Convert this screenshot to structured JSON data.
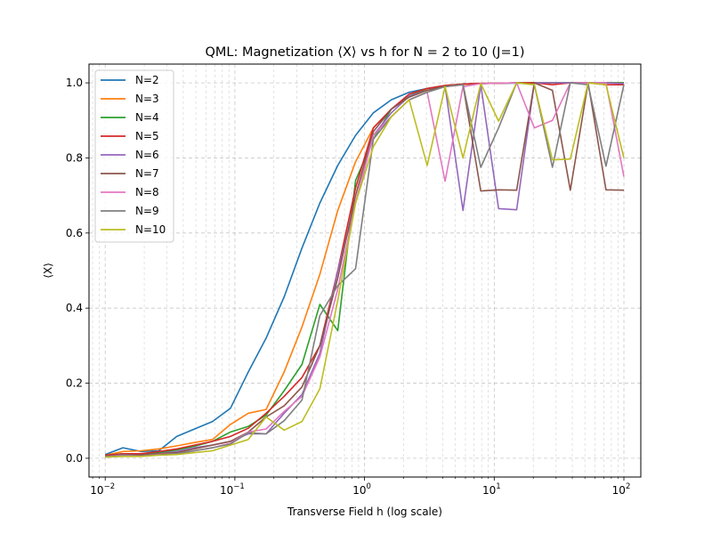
{
  "chart_data": {
    "type": "line",
    "title": "QML: Magnetization ⟨X⟩ vs h for N = 2 to 10 (J=1)",
    "xlabel": "Transverse Field h (log scale)",
    "ylabel": "⟨X⟩",
    "xscale": "log",
    "xlim": [
      0.0075,
      135
    ],
    "ylim": [
      -0.05,
      1.05
    ],
    "xticks": [
      0.01,
      0.1,
      1,
      10,
      100
    ],
    "xtick_labels": [
      "10",
      "10",
      "10",
      "10",
      "10"
    ],
    "xtick_exponents": [
      "−2",
      "−1",
      "0",
      "1",
      "2"
    ],
    "yticks": [
      0.0,
      0.2,
      0.4,
      0.6,
      0.8,
      1.0
    ],
    "ytick_labels": [
      "0.0",
      "0.2",
      "0.4",
      "0.6",
      "0.8",
      "1.0"
    ],
    "grid": true,
    "legend_position": "top-left",
    "x": [
      0.01,
      0.0137,
      0.0189,
      0.0259,
      0.0356,
      0.0489,
      0.0672,
      0.0924,
      0.127,
      0.174,
      0.24,
      0.329,
      0.452,
      0.621,
      0.853,
      1.17,
      1.61,
      2.21,
      3.04,
      4.18,
      5.74,
      7.88,
      10.8,
      14.9,
      20.4,
      28.1,
      38.6,
      53.0,
      72.8,
      100.0
    ],
    "series": [
      {
        "name": "N=2",
        "color": "#1f77b4",
        "values": [
          0.01,
          0.028,
          0.018,
          0.02,
          0.058,
          0.078,
          0.098,
          0.133,
          0.23,
          0.32,
          0.43,
          0.56,
          0.68,
          0.78,
          0.86,
          0.92,
          0.955,
          0.975,
          0.985,
          0.992,
          0.996,
          0.998,
          0.999,
          0.999,
          1.0,
          1.0,
          1.0,
          1.0,
          1.0,
          1.0
        ]
      },
      {
        "name": "N=3",
        "color": "#ff7f0e",
        "values": [
          0.008,
          0.018,
          0.02,
          0.025,
          0.033,
          0.042,
          0.05,
          0.09,
          0.12,
          0.13,
          0.23,
          0.35,
          0.49,
          0.66,
          0.79,
          0.88,
          0.93,
          0.965,
          0.98,
          0.99,
          0.996,
          0.998,
          0.999,
          1.0,
          1.0,
          1.0,
          1.0,
          1.0,
          1.0,
          1.0
        ]
      },
      {
        "name": "N=4",
        "color": "#2ca02c",
        "values": [
          0.008,
          0.012,
          0.01,
          0.015,
          0.022,
          0.032,
          0.045,
          0.07,
          0.085,
          0.115,
          0.18,
          0.25,
          0.41,
          0.34,
          0.74,
          0.85,
          0.93,
          0.965,
          0.985,
          0.993,
          0.997,
          0.998,
          0.999,
          1.0,
          1.0,
          1.0,
          1.0,
          1.0,
          1.0,
          1.0
        ]
      },
      {
        "name": "N=5",
        "color": "#d62728",
        "values": [
          0.008,
          0.012,
          0.012,
          0.018,
          0.025,
          0.035,
          0.045,
          0.058,
          0.08,
          0.12,
          0.165,
          0.215,
          0.3,
          0.5,
          0.72,
          0.88,
          0.93,
          0.97,
          0.985,
          0.993,
          0.997,
          0.999,
          0.999,
          1.0,
          1.0,
          0.995,
          1.0,
          1.0,
          0.995,
          0.995
        ]
      },
      {
        "name": "N=6",
        "color": "#9467bd",
        "values": [
          0.005,
          0.01,
          0.008,
          0.012,
          0.018,
          0.028,
          0.035,
          0.045,
          0.065,
          0.065,
          0.12,
          0.17,
          0.28,
          0.5,
          0.68,
          0.86,
          0.92,
          0.965,
          0.98,
          0.99,
          0.66,
          0.995,
          0.665,
          0.662,
          1.0,
          1.0,
          1.0,
          1.0,
          1.0,
          0.998
        ]
      },
      {
        "name": "N=7",
        "color": "#8c564b",
        "values": [
          0.005,
          0.01,
          0.008,
          0.012,
          0.015,
          0.025,
          0.035,
          0.045,
          0.07,
          0.11,
          0.14,
          0.19,
          0.3,
          0.48,
          0.7,
          0.87,
          0.93,
          0.962,
          0.98,
          0.99,
          0.995,
          0.712,
          0.715,
          0.714,
          1.0,
          0.98,
          0.714,
          1.0,
          0.715,
          0.714
        ]
      },
      {
        "name": "N=8",
        "color": "#e377c2",
        "values": [
          0.003,
          0.008,
          0.006,
          0.01,
          0.012,
          0.02,
          0.028,
          0.04,
          0.07,
          0.078,
          0.125,
          0.165,
          0.27,
          0.45,
          0.68,
          0.86,
          0.91,
          0.955,
          0.975,
          0.738,
          0.99,
          0.998,
          0.999,
          1.0,
          0.88,
          0.9,
          1.0,
          1.0,
          1.0,
          0.75
        ]
      },
      {
        "name": "N=9",
        "color": "#7f7f7f",
        "values": [
          0.003,
          0.007,
          0.006,
          0.009,
          0.012,
          0.02,
          0.028,
          0.038,
          0.068,
          0.065,
          0.1,
          0.155,
          0.38,
          0.46,
          0.505,
          0.85,
          0.91,
          0.955,
          0.975,
          0.99,
          0.995,
          0.775,
          0.88,
          1.0,
          0.995,
          0.775,
          1.0,
          0.995,
          0.778,
          0.995
        ]
      },
      {
        "name": "N=10",
        "color": "#bcbd22",
        "values": [
          0.003,
          0.005,
          0.005,
          0.008,
          0.01,
          0.015,
          0.02,
          0.035,
          0.05,
          0.11,
          0.075,
          0.098,
          0.185,
          0.42,
          0.68,
          0.83,
          0.91,
          0.955,
          0.78,
          0.99,
          0.8,
          0.998,
          0.898,
          1.0,
          0.995,
          0.795,
          0.797,
          1.0,
          0.995,
          0.8
        ]
      }
    ]
  }
}
